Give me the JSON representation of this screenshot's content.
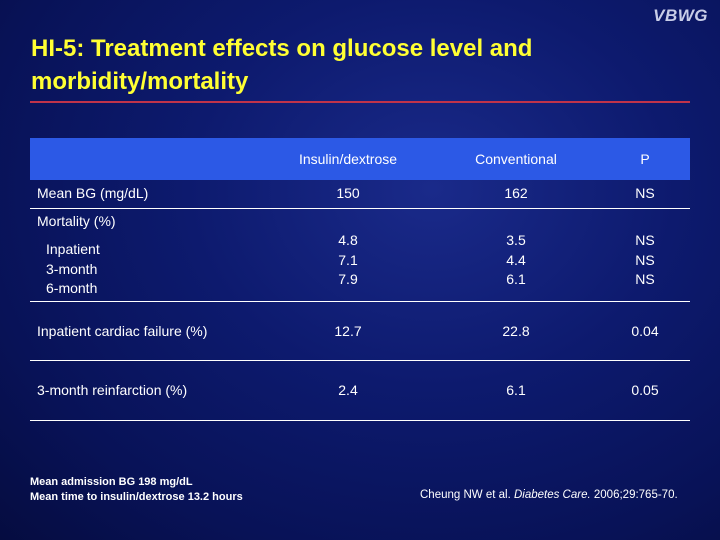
{
  "logo": "VBWG",
  "title_line1": "HI-5: Treatment effects on glucose level and",
  "title_line2": "morbidity/mortality",
  "table": {
    "headers": [
      "",
      "Insulin/dextrose",
      "Conventional",
      "P"
    ],
    "rows": [
      {
        "label": "Mean BG (mg/dL)",
        "insulin": "150",
        "conventional": "162",
        "p": "NS"
      },
      {
        "label": "Mortality (%)"
      },
      {
        "sublabels": [
          "Inpatient",
          "3-month",
          "6-month"
        ],
        "insulin": [
          "4.8",
          "7.1",
          "7.9"
        ],
        "conventional": [
          "3.5",
          "4.4",
          "6.1"
        ],
        "p": [
          "NS",
          "NS",
          "NS"
        ]
      },
      {
        "label": "Inpatient cardiac failure (%)",
        "insulin": "12.7",
        "conventional": "22.8",
        "p": "0.04"
      },
      {
        "label": "3-month reinfarction (%)",
        "insulin": "2.4",
        "conventional": "6.1",
        "p": "0.05"
      }
    ]
  },
  "footnotes": [
    "Mean admission BG 198 mg/dL",
    "Mean time to insulin/dextrose 13.2 hours"
  ],
  "citation": {
    "authors": "Cheung NW et al.",
    "journal": "Diabetes Care.",
    "details": "2006;29:765-70."
  },
  "colors": {
    "title": "#ffff33",
    "header_bg": "#2c59e6",
    "title_rule": "#c0334a"
  }
}
